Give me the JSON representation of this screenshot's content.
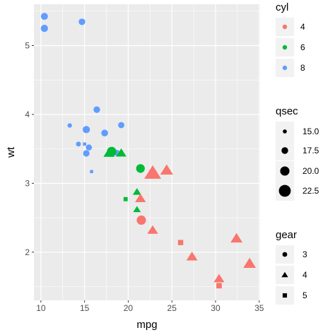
{
  "chart_data": {
    "type": "scatter",
    "xlabel": "mpg",
    "ylabel": "wt",
    "xlim": [
      9.2,
      35.1
    ],
    "ylim": [
      1.3,
      5.6
    ],
    "x_ticks": [
      10,
      15,
      20,
      25,
      30,
      35
    ],
    "y_ticks": [
      2,
      3,
      4,
      5
    ],
    "grid": true,
    "legend_position": "right",
    "colors": {
      "4": "#f8766d",
      "6": "#00ba38",
      "8": "#619cff"
    },
    "legends": {
      "color": {
        "title": "cyl",
        "items": [
          "4",
          "6",
          "8"
        ]
      },
      "size": {
        "title": "qsec",
        "items": [
          "15.0",
          "17.5",
          "20.0",
          "22.5"
        ],
        "values": [
          15,
          17.5,
          20,
          22.5
        ]
      },
      "shape": {
        "title": "gear",
        "items": [
          "3",
          "4",
          "5"
        ],
        "shapes": [
          "circle",
          "triangle",
          "square"
        ]
      }
    },
    "points": [
      {
        "mpg": 21.0,
        "wt": 2.62,
        "cyl": "6",
        "qsec": 16.46,
        "gear": "4"
      },
      {
        "mpg": 21.0,
        "wt": 2.875,
        "cyl": "6",
        "qsec": 17.02,
        "gear": "4"
      },
      {
        "mpg": 22.8,
        "wt": 2.32,
        "cyl": "4",
        "qsec": 18.61,
        "gear": "4"
      },
      {
        "mpg": 21.4,
        "wt": 3.215,
        "cyl": "6",
        "qsec": 19.44,
        "gear": "3"
      },
      {
        "mpg": 18.7,
        "wt": 3.44,
        "cyl": "8",
        "qsec": 17.02,
        "gear": "3"
      },
      {
        "mpg": 18.1,
        "wt": 3.46,
        "cyl": "6",
        "qsec": 20.22,
        "gear": "3"
      },
      {
        "mpg": 14.3,
        "wt": 3.57,
        "cyl": "8",
        "qsec": 15.84,
        "gear": "3"
      },
      {
        "mpg": 24.4,
        "wt": 3.19,
        "cyl": "4",
        "qsec": 20.0,
        "gear": "4"
      },
      {
        "mpg": 22.8,
        "wt": 3.15,
        "cyl": "4",
        "qsec": 22.9,
        "gear": "4"
      },
      {
        "mpg": 19.2,
        "wt": 3.44,
        "cyl": "6",
        "qsec": 18.3,
        "gear": "4"
      },
      {
        "mpg": 17.8,
        "wt": 3.44,
        "cyl": "6",
        "qsec": 18.9,
        "gear": "4"
      },
      {
        "mpg": 16.4,
        "wt": 4.07,
        "cyl": "8",
        "qsec": 17.4,
        "gear": "3"
      },
      {
        "mpg": 17.3,
        "wt": 3.73,
        "cyl": "8",
        "qsec": 17.6,
        "gear": "3"
      },
      {
        "mpg": 15.2,
        "wt": 3.78,
        "cyl": "8",
        "qsec": 18.0,
        "gear": "3"
      },
      {
        "mpg": 10.4,
        "wt": 5.25,
        "cyl": "8",
        "qsec": 17.98,
        "gear": "3"
      },
      {
        "mpg": 10.4,
        "wt": 5.424,
        "cyl": "8",
        "qsec": 17.82,
        "gear": "3"
      },
      {
        "mpg": 14.7,
        "wt": 5.345,
        "cyl": "8",
        "qsec": 17.42,
        "gear": "3"
      },
      {
        "mpg": 32.4,
        "wt": 2.2,
        "cyl": "4",
        "qsec": 19.47,
        "gear": "4"
      },
      {
        "mpg": 30.4,
        "wt": 1.615,
        "cyl": "4",
        "qsec": 18.52,
        "gear": "4"
      },
      {
        "mpg": 33.9,
        "wt": 1.835,
        "cyl": "4",
        "qsec": 19.9,
        "gear": "4"
      },
      {
        "mpg": 21.5,
        "wt": 2.465,
        "cyl": "4",
        "qsec": 20.01,
        "gear": "3"
      },
      {
        "mpg": 15.5,
        "wt": 3.52,
        "cyl": "8",
        "qsec": 16.87,
        "gear": "3"
      },
      {
        "mpg": 15.2,
        "wt": 3.435,
        "cyl": "8",
        "qsec": 17.3,
        "gear": "3"
      },
      {
        "mpg": 13.3,
        "wt": 3.84,
        "cyl": "8",
        "qsec": 15.41,
        "gear": "3"
      },
      {
        "mpg": 19.2,
        "wt": 3.845,
        "cyl": "8",
        "qsec": 17.05,
        "gear": "3"
      },
      {
        "mpg": 27.3,
        "wt": 1.935,
        "cyl": "4",
        "qsec": 18.9,
        "gear": "4"
      },
      {
        "mpg": 26.0,
        "wt": 2.14,
        "cyl": "4",
        "qsec": 16.7,
        "gear": "5"
      },
      {
        "mpg": 30.4,
        "wt": 1.513,
        "cyl": "4",
        "qsec": 16.9,
        "gear": "5"
      },
      {
        "mpg": 15.8,
        "wt": 3.17,
        "cyl": "8",
        "qsec": 14.5,
        "gear": "5"
      },
      {
        "mpg": 19.7,
        "wt": 2.77,
        "cyl": "6",
        "qsec": 15.5,
        "gear": "5"
      },
      {
        "mpg": 15.0,
        "wt": 3.57,
        "cyl": "8",
        "qsec": 14.6,
        "gear": "5"
      },
      {
        "mpg": 21.4,
        "wt": 2.78,
        "cyl": "4",
        "qsec": 18.6,
        "gear": "4"
      }
    ]
  }
}
